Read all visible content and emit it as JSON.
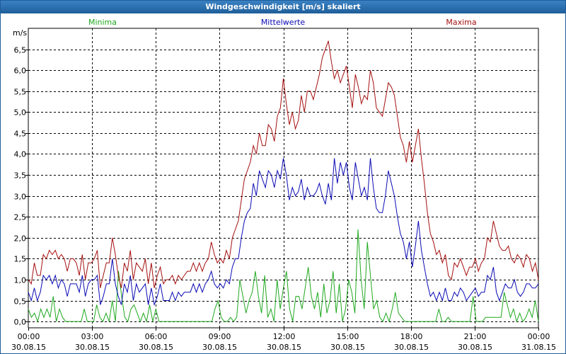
{
  "chart_data": {
    "type": "line",
    "title": "Windgeschwindigkeit [m/s] skaliert",
    "ylabel": "m/s",
    "ylim": [
      -0.15,
      7.0
    ],
    "yticks": [
      0.0,
      0.5,
      1.0,
      1.5,
      2.0,
      2.5,
      3.0,
      3.5,
      4.0,
      4.5,
      5.0,
      5.5,
      6.0,
      6.5
    ],
    "ytick_labels": [
      "0,0",
      "0,5",
      "1,0",
      "1,5",
      "2,0",
      "2,5",
      "3,0",
      "3,5",
      "4,0",
      "4,5",
      "5,0",
      "5,5",
      "6,0",
      "6,5"
    ],
    "xlim": [
      0,
      24
    ],
    "xticks": [
      {
        "time": "00:00",
        "date": "30.08.15"
      },
      {
        "time": "03:00",
        "date": "30.08.15"
      },
      {
        "time": "06:00",
        "date": "30.08.15"
      },
      {
        "time": "09:00",
        "date": "30.08.15"
      },
      {
        "time": "12:00",
        "date": "30.08.15"
      },
      {
        "time": "15:00",
        "date": "30.08.15"
      },
      {
        "time": "18:00",
        "date": "30.08.15"
      },
      {
        "time": "21:00",
        "date": "30.08.15"
      },
      {
        "time": "00:00",
        "date": "31.08.15"
      }
    ],
    "grid": true,
    "legend_position": "top",
    "step_hours": 0.16667,
    "series": [
      {
        "name": "Minima",
        "color": "#1fa81f",
        "values": [
          0.3,
          0.1,
          0.2,
          0.0,
          0.3,
          0.1,
          0.3,
          0.1,
          0.6,
          0.0,
          0.3,
          0.1,
          0.0,
          0.0,
          0.0,
          0.0,
          0.0,
          0.0,
          0.3,
          0.0,
          0.0,
          0.0,
          0.4,
          0.1,
          0.0,
          0.2,
          0.0,
          0.5,
          0.0,
          1.2,
          0.6,
          0.1,
          0.0,
          0.3,
          0.4,
          0.2,
          0.0,
          0.2,
          0.0,
          0.4,
          0.0,
          0.3,
          0.0,
          0.0,
          0.0,
          0.0,
          0.0,
          0.0,
          0.0,
          0.0,
          0.0,
          0.0,
          0.0,
          0.0,
          0.0,
          0.0,
          0.0,
          0.0,
          0.0,
          0.0,
          0.3,
          0.5,
          0.1,
          0.0,
          0.0,
          0.1,
          0.0,
          0.1,
          1.0,
          0.6,
          0.2,
          0.5,
          0.7,
          1.2,
          0.6,
          0.2,
          1.1,
          0.1,
          0.3,
          0.0,
          1.0,
          0.3,
          0.8,
          1.2,
          0.3,
          0.0,
          0.6,
          0.6,
          0.3,
          0.8,
          1.3,
          0.6,
          0.3,
          0.7,
          0.1,
          0.9,
          0.2,
          0.5,
          1.2,
          0.2,
          0.9,
          0.0,
          0.3,
          1.0,
          0.7,
          0.2,
          2.2,
          1.0,
          0.3,
          1.9,
          1.1,
          0.3,
          0.5,
          0.1,
          0.0,
          0.2,
          0.0,
          0.3,
          0.7,
          0.2,
          0.1,
          0.0,
          0.0,
          0.0,
          0.0,
          0.0,
          0.0,
          0.0,
          0.0,
          0.0,
          0.0,
          0.0,
          0.3,
          0.0,
          0.0,
          0.1,
          0.0,
          0.0,
          0.0,
          0.0,
          0.0,
          0.0,
          0.0,
          0.6,
          0.0,
          0.0,
          0.0,
          0.1,
          0.1,
          0.1,
          0.1,
          0.1,
          0.1,
          0.7,
          0.4,
          0.1,
          0.3,
          0.0,
          0.2,
          0.0,
          0.1,
          0.3,
          0.1,
          0.5,
          0.0
        ]
      },
      {
        "name": "Mittelwerte",
        "color": "#0a0ab4",
        "values": [
          0.7,
          0.5,
          0.8,
          0.5,
          0.7,
          1.1,
          1.0,
          1.1,
          0.9,
          1.1,
          0.8,
          1.0,
          0.9,
          0.6,
          0.9,
          0.9,
          0.9,
          0.7,
          1.1,
          0.6,
          0.9,
          1.0,
          1.0,
          1.1,
          0.4,
          0.6,
          0.9,
          0.9,
          1.5,
          0.9,
          0.6,
          0.4,
          0.9,
          0.7,
          1.1,
          0.5,
          0.9,
          0.7,
          0.8,
          0.9,
          0.4,
          0.8,
          0.4,
          0.6,
          0.9,
          0.5,
          0.5,
          0.5,
          0.7,
          0.5,
          0.7,
          0.6,
          0.7,
          0.7,
          0.7,
          0.9,
          0.7,
          0.9,
          0.7,
          0.9,
          1.0,
          1.2,
          0.9,
          0.8,
          0.9,
          0.8,
          1.0,
          0.9,
          1.3,
          1.5,
          1.5,
          2.0,
          2.4,
          2.6,
          2.7,
          3.3,
          3.0,
          3.6,
          3.4,
          3.2,
          3.6,
          3.5,
          3.2,
          3.6,
          3.4,
          3.9,
          3.5,
          2.9,
          3.2,
          3.0,
          3.1,
          3.4,
          2.9,
          3.2,
          3.0,
          3.0,
          3.1,
          3.3,
          3.0,
          2.8,
          3.3,
          2.9,
          3.9,
          3.3,
          3.8,
          3.5,
          3.8,
          3.2,
          2.9,
          3.8,
          3.4,
          3.0,
          3.2,
          2.9,
          3.9,
          3.2,
          2.7,
          2.6,
          2.6,
          3.0,
          3.6,
          3.3,
          3.0,
          2.5,
          2.1,
          1.9,
          1.5,
          1.9,
          1.3,
          1.8,
          2.4,
          1.7,
          1.3,
          0.9,
          0.6,
          0.7,
          0.5,
          0.7,
          0.5,
          0.8,
          0.5,
          0.5,
          0.7,
          0.6,
          0.8,
          0.7,
          0.5,
          0.6,
          0.7,
          0.8,
          0.6,
          0.7,
          0.7,
          1.1,
          1.0,
          1.3,
          0.7,
          0.5,
          0.7,
          0.9,
          0.8,
          0.8,
          1.0,
          0.7,
          0.6,
          0.7,
          0.9,
          0.9,
          0.8,
          0.8,
          0.9
        ]
      },
      {
        "name": "Maxima",
        "color": "#a50f0f",
        "values": [
          1.0,
          0.9,
          1.4,
          1.1,
          1.1,
          1.6,
          1.5,
          1.7,
          1.6,
          1.7,
          1.5,
          1.6,
          1.5,
          1.2,
          1.5,
          1.5,
          1.4,
          1.1,
          1.6,
          1.0,
          1.4,
          1.4,
          1.5,
          1.7,
          0.8,
          1.1,
          1.4,
          1.4,
          2.0,
          1.6,
          1.1,
          0.8,
          1.4,
          1.2,
          1.7,
          1.0,
          1.4,
          1.3,
          1.2,
          1.5,
          0.9,
          1.4,
          0.8,
          1.1,
          1.3,
          0.9,
          1.0,
          1.0,
          1.1,
          0.9,
          1.1,
          1.0,
          1.1,
          1.2,
          1.2,
          1.4,
          1.2,
          1.4,
          1.2,
          1.4,
          1.5,
          1.9,
          1.6,
          1.4,
          1.5,
          1.4,
          1.7,
          1.5,
          2.0,
          2.2,
          2.4,
          2.9,
          3.4,
          3.6,
          3.8,
          4.2,
          4.0,
          4.5,
          4.2,
          4.2,
          4.7,
          4.6,
          4.3,
          4.9,
          5.1,
          5.8,
          5.2,
          4.7,
          5.0,
          4.6,
          4.8,
          5.4,
          5.0,
          5.5,
          5.5,
          5.3,
          5.6,
          5.9,
          6.3,
          6.5,
          6.7,
          6.2,
          5.8,
          6.0,
          5.7,
          5.9,
          6.1,
          5.6,
          5.1,
          5.9,
          5.6,
          5.2,
          5.4,
          5.3,
          6.0,
          5.7,
          5.1,
          5.0,
          4.9,
          5.3,
          5.7,
          5.6,
          5.4,
          4.9,
          4.4,
          4.2,
          3.8,
          4.3,
          3.8,
          4.2,
          4.6,
          3.9,
          3.3,
          2.6,
          2.1,
          1.9,
          1.6,
          1.7,
          1.4,
          1.6,
          1.1,
          1.0,
          1.4,
          1.3,
          1.5,
          1.3,
          1.1,
          1.3,
          1.3,
          1.5,
          1.2,
          1.4,
          1.5,
          2.0,
          1.9,
          2.4,
          2.1,
          1.8,
          1.7,
          1.7,
          1.8,
          1.5,
          1.4,
          1.6,
          1.5,
          1.3,
          1.6,
          1.5,
          1.2,
          1.4,
          1.0
        ]
      }
    ]
  }
}
